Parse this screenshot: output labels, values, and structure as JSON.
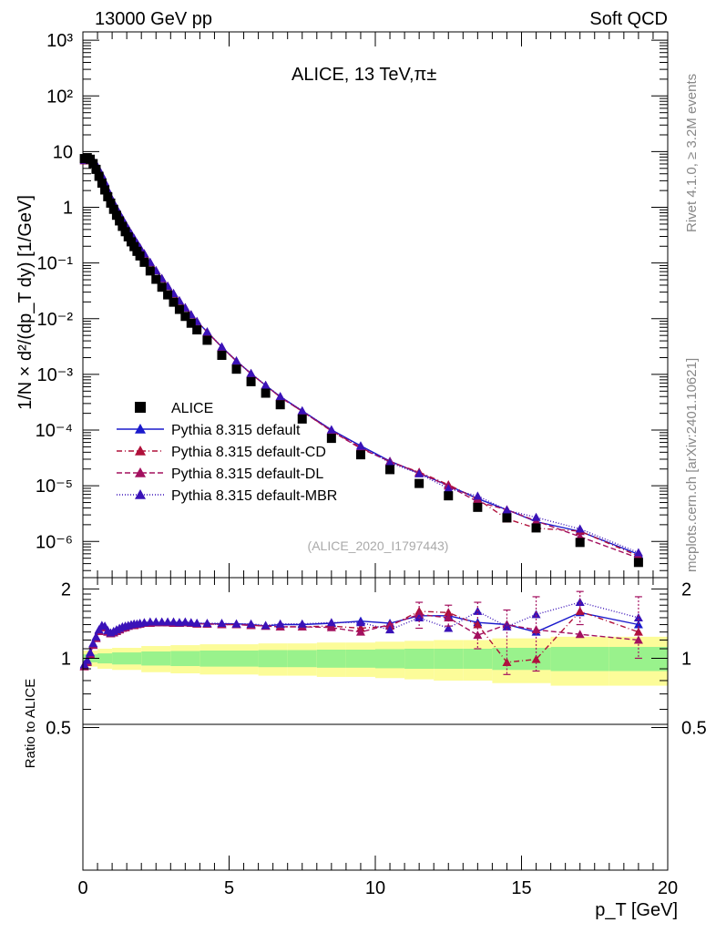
{
  "header": {
    "left": "13000 GeV pp",
    "right": "Soft QCD"
  },
  "plot": {
    "title": "ALICE, 13 TeV,π±",
    "analysis_id": "(ALICE_2020_I1797443)",
    "side_top": "Rivet 4.1.0, ≥ 3.2M events",
    "side_bottom": "mcplots.cern.ch [arXiv:2401.10621]"
  },
  "legend": [
    {
      "label": "ALICE",
      "color": "#000000",
      "marker": "square",
      "dash": "none"
    },
    {
      "label": "Pythia 8.315 default",
      "color": "#1a1acc",
      "marker": "triangle",
      "dash": "solid"
    },
    {
      "label": "Pythia 8.315 default-CD",
      "color": "#b0103a",
      "marker": "triangle",
      "dash": "6,3,1,3"
    },
    {
      "label": "Pythia 8.315 default-DL",
      "color": "#a3105f",
      "marker": "triangle",
      "dash": "6,3"
    },
    {
      "label": "Pythia 8.315 default-MBR",
      "color": "#3a12b8",
      "marker": "triangle",
      "dash": "1,2"
    }
  ],
  "chart_data": {
    "type": "scatter",
    "xlabel": "p_T [GeV]",
    "ylabel": "1/N × d²/(dp_T dy) [1/GeV]",
    "ratio_ylabel": "Ratio to ALICE",
    "xlim": [
      0,
      20
    ],
    "ylim_log": [
      -6.65,
      3.15
    ],
    "ratio_ylim_log": [
      -0.92,
      0.35
    ],
    "x_ticks": [
      "0",
      "5",
      "10",
      "15",
      "20"
    ],
    "y_ticks": [
      "10³",
      "10²",
      "10",
      "1",
      "10⁻¹",
      "10⁻²",
      "10⁻³",
      "10⁻⁴",
      "10⁻⁵",
      "10⁻⁶"
    ],
    "ratio_ticks": [
      "2",
      "1",
      "0.5"
    ],
    "x": [
      0.05,
      0.15,
      0.25,
      0.35,
      0.45,
      0.55,
      0.65,
      0.75,
      0.85,
      0.95,
      1.05,
      1.15,
      1.25,
      1.35,
      1.45,
      1.55,
      1.65,
      1.75,
      1.85,
      1.95,
      2.1,
      2.3,
      2.5,
      2.7,
      2.9,
      3.1,
      3.3,
      3.5,
      3.7,
      3.9,
      4.25,
      4.75,
      5.25,
      5.75,
      6.25,
      6.75,
      7.5,
      8.5,
      9.5,
      10.5,
      11.5,
      12.5,
      13.5,
      14.5,
      15.5,
      17.0,
      19.0
    ],
    "series": [
      {
        "name": "ALICE",
        "values": [
          7.5,
          7.8,
          7.3,
          6.1,
          4.8,
          3.6,
          2.72,
          2.05,
          1.55,
          1.19,
          0.92,
          0.72,
          0.57,
          0.455,
          0.365,
          0.295,
          0.24,
          0.197,
          0.162,
          0.134,
          0.103,
          0.072,
          0.051,
          0.0368,
          0.0268,
          0.0198,
          0.0147,
          0.011,
          0.0083,
          0.0063,
          0.0041,
          0.0022,
          0.00124,
          0.00074,
          0.00046,
          0.000285,
          0.000158,
          7.1e-05,
          3.6e-05,
          1.95e-05,
          1.1e-05,
          6.6e-06,
          4.1e-06,
          2.65e-06,
          1.75e-06,
          9.6e-07,
          4.2e-07
        ]
      },
      {
        "name": "Pythia 8.315 default",
        "ratio": [
          0.93,
          0.97,
          1.05,
          1.15,
          1.23,
          1.32,
          1.38,
          1.37,
          1.31,
          1.28,
          1.3,
          1.32,
          1.34,
          1.36,
          1.37,
          1.38,
          1.39,
          1.4,
          1.4,
          1.41,
          1.42,
          1.43,
          1.43,
          1.43,
          1.43,
          1.43,
          1.43,
          1.43,
          1.42,
          1.42,
          1.41,
          1.41,
          1.41,
          1.4,
          1.38,
          1.4,
          1.4,
          1.42,
          1.45,
          1.42,
          1.53,
          1.53,
          1.43,
          1.4,
          1.3,
          1.58,
          1.4
        ]
      },
      {
        "name": "Pythia 8.315 default-CD",
        "ratio": [
          0.92,
          0.96,
          1.04,
          1.14,
          1.22,
          1.31,
          1.37,
          1.36,
          1.3,
          1.28,
          1.29,
          1.31,
          1.33,
          1.35,
          1.36,
          1.38,
          1.39,
          1.39,
          1.4,
          1.41,
          1.42,
          1.42,
          1.43,
          1.43,
          1.43,
          1.42,
          1.42,
          1.43,
          1.42,
          1.41,
          1.41,
          1.4,
          1.4,
          1.39,
          1.38,
          1.37,
          1.37,
          1.38,
          1.35,
          1.38,
          1.6,
          1.58,
          1.4,
          0.96,
          0.99,
          1.6,
          1.3
        ]
      },
      {
        "name": "Pythia 8.315 default-DL",
        "ratio": [
          0.92,
          0.96,
          1.04,
          1.14,
          1.22,
          1.31,
          1.37,
          1.36,
          1.3,
          1.28,
          1.29,
          1.31,
          1.33,
          1.35,
          1.36,
          1.38,
          1.39,
          1.39,
          1.4,
          1.41,
          1.42,
          1.42,
          1.43,
          1.43,
          1.43,
          1.42,
          1.42,
          1.43,
          1.42,
          1.41,
          1.41,
          1.4,
          1.4,
          1.39,
          1.38,
          1.37,
          1.37,
          1.36,
          1.3,
          1.4,
          1.55,
          1.5,
          1.26,
          1.4,
          1.33,
          1.27,
          1.2
        ]
      },
      {
        "name": "Pythia 8.315 default-MBR",
        "ratio": [
          0.94,
          0.98,
          1.06,
          1.16,
          1.24,
          1.33,
          1.39,
          1.38,
          1.32,
          1.29,
          1.31,
          1.33,
          1.35,
          1.37,
          1.38,
          1.39,
          1.4,
          1.41,
          1.41,
          1.42,
          1.43,
          1.44,
          1.44,
          1.44,
          1.44,
          1.44,
          1.43,
          1.44,
          1.43,
          1.42,
          1.42,
          1.42,
          1.41,
          1.41,
          1.39,
          1.41,
          1.41,
          1.43,
          1.43,
          1.33,
          1.5,
          1.35,
          1.6,
          1.37,
          1.55,
          1.75,
          1.5
        ]
      }
    ],
    "model_error_bars": [
      {
        "x": 11.5,
        "lo": 1.35,
        "hi": 1.75
      },
      {
        "x": 12.5,
        "lo": 1.38,
        "hi": 1.7
      },
      {
        "x": 13.5,
        "lo": 1.1,
        "hi": 1.75
      },
      {
        "x": 14.5,
        "lo": 0.85,
        "hi": 1.62
      },
      {
        "x": 15.5,
        "lo": 0.88,
        "hi": 1.85
      },
      {
        "x": 17.0,
        "lo": 1.4,
        "hi": 1.95
      },
      {
        "x": 19.0,
        "lo": 1.0,
        "hi": 1.85
      }
    ],
    "uncertainty_band": {
      "edges": [
        0,
        0.5,
        1,
        2,
        3,
        4,
        5,
        6,
        7,
        8,
        9,
        10,
        11,
        12,
        13,
        14,
        15,
        16,
        18,
        20
      ],
      "inner": [
        0.04,
        0.05,
        0.06,
        0.07,
        0.075,
        0.08,
        0.08,
        0.085,
        0.085,
        0.09,
        0.09,
        0.095,
        0.1,
        0.1,
        0.1,
        0.11,
        0.11,
        0.12,
        0.12
      ],
      "outer": [
        0.08,
        0.1,
        0.11,
        0.13,
        0.14,
        0.15,
        0.15,
        0.16,
        0.16,
        0.17,
        0.17,
        0.18,
        0.19,
        0.2,
        0.2,
        0.22,
        0.22,
        0.24,
        0.24
      ],
      "inner_color": "#99f28c",
      "outer_color": "#fcfc99"
    }
  }
}
